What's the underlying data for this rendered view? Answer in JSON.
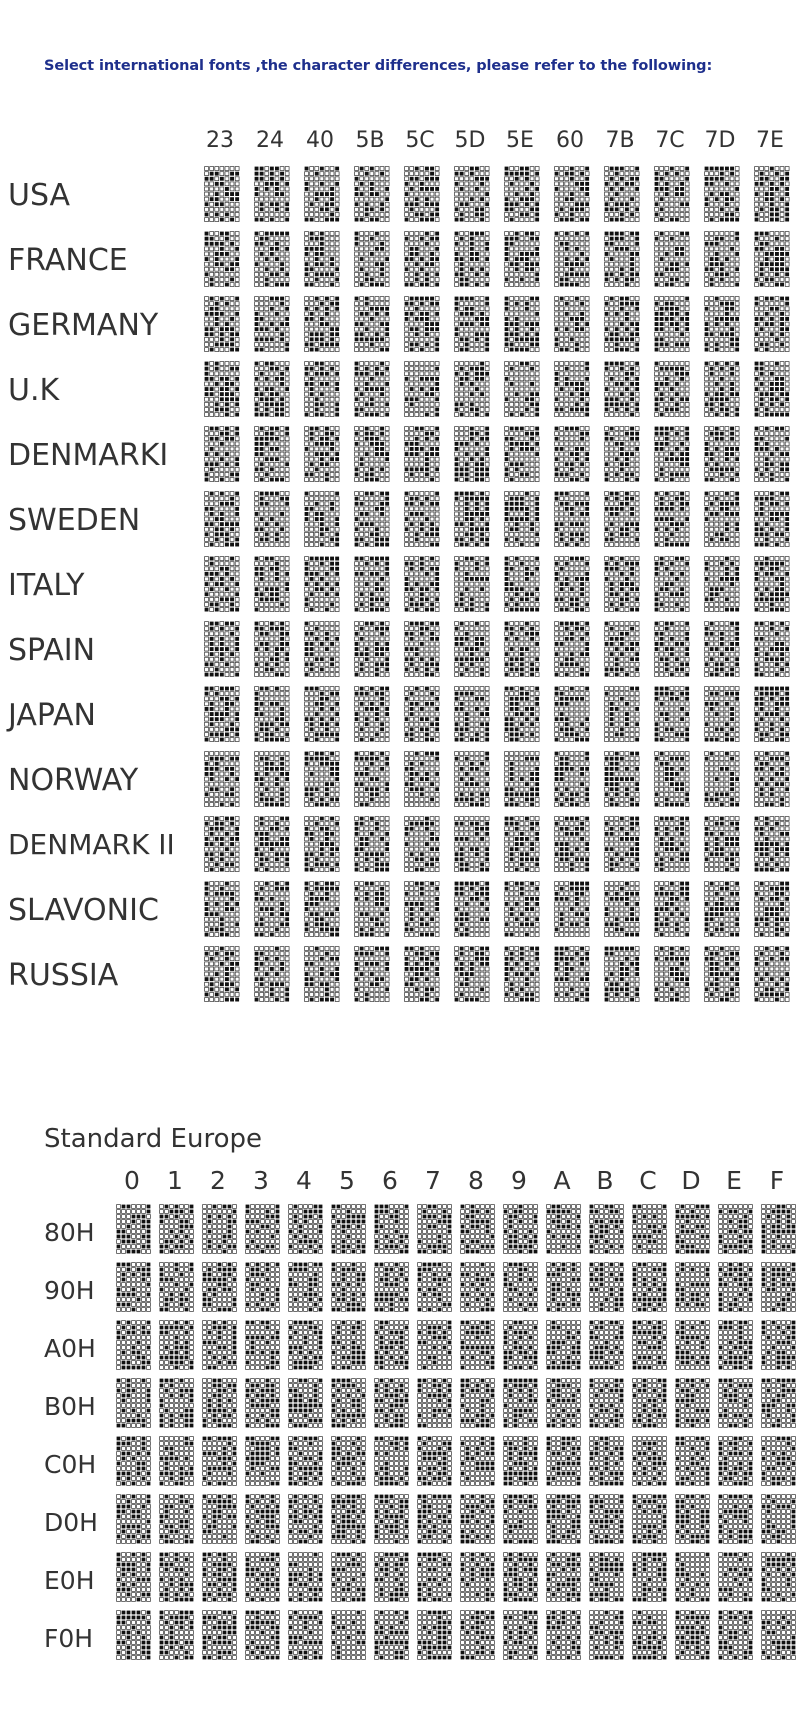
{
  "heading": "Select international fonts ,the character differences, please refer to the following:",
  "international": {
    "columns": [
      "23",
      "24",
      "40",
      "5B",
      "5C",
      "5D",
      "5E",
      "60",
      "7B",
      "7C",
      "7D",
      "7E"
    ],
    "rows": [
      "USA",
      "FRANCE",
      "GERMANY",
      "U.K",
      "DENMARKI",
      "SWEDEN",
      "ITALY",
      "SPAIN",
      "JAPAN",
      "NORWAY",
      "DENMARK II",
      "SLAVONIC",
      "RUSSIA"
    ]
  },
  "standard_europe": {
    "title": "Standard Europe",
    "columns": [
      "0",
      "1",
      "2",
      "3",
      "4",
      "5",
      "6",
      "7",
      "8",
      "9",
      "A",
      "B",
      "C",
      "D",
      "E",
      "F"
    ],
    "rows": [
      "80H",
      "90H",
      "A0H",
      "B0H",
      "C0H",
      "D0H",
      "E0H",
      "F0H"
    ]
  },
  "colors": {
    "heading": "#1e2f8c",
    "dot_on": "#111111",
    "dot_off": "#ffffff"
  }
}
